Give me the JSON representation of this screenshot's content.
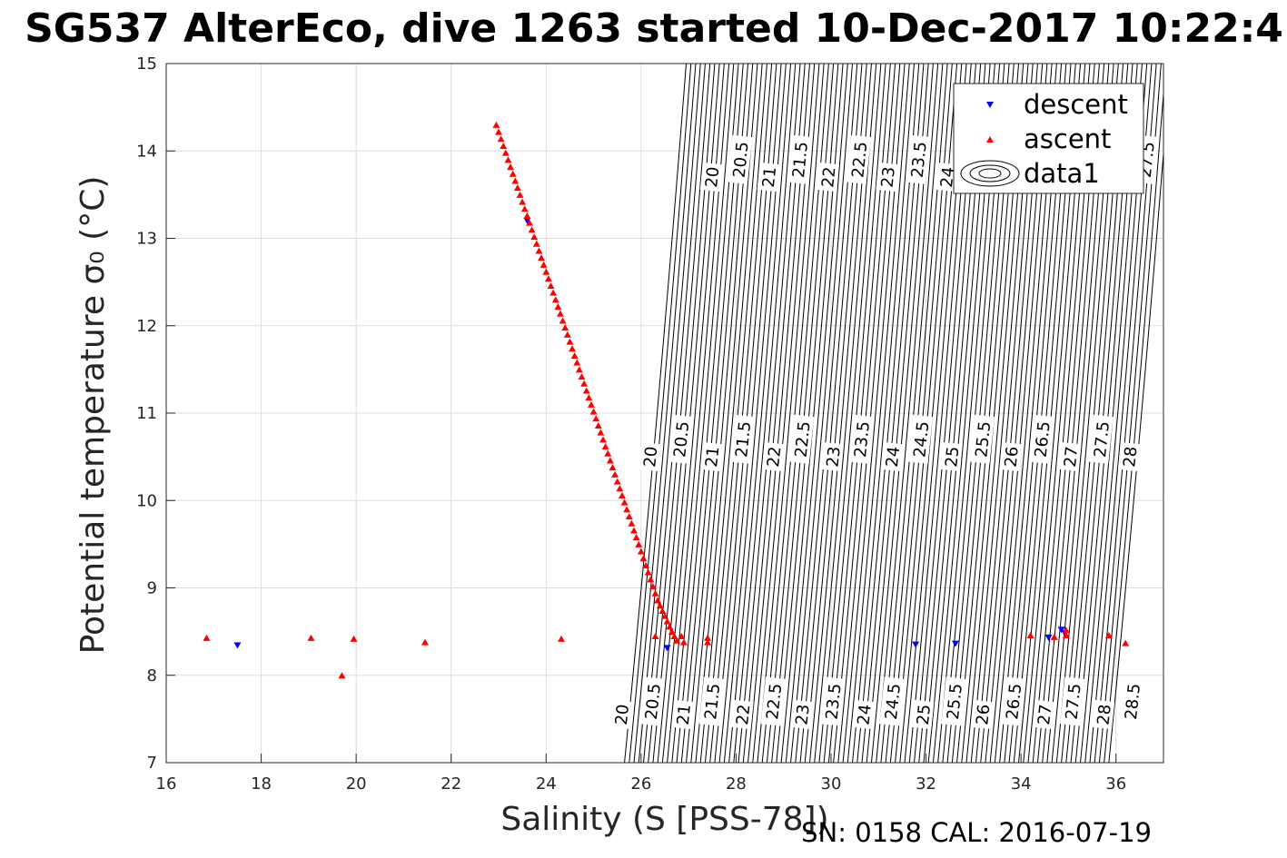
{
  "chart_data": {
    "type": "scatter",
    "title": "SG537 AlterEco, dive 1263 started 10-Dec-2017 10:22:4",
    "xlabel": "Salinity (S [PSS-78])",
    "ylabel": "Potential temperature σ₀ (°C)",
    "xlim": [
      16,
      37
    ],
    "ylim": [
      7,
      15
    ],
    "x_ticks": [
      "16",
      "18",
      "20",
      "22",
      "24",
      "26",
      "28",
      "30",
      "32",
      "34",
      "36"
    ],
    "y_ticks": [
      "7",
      "8",
      "9",
      "10",
      "11",
      "12",
      "13",
      "14",
      "15"
    ],
    "grid": true,
    "legend": {
      "position": "top-right",
      "entries": [
        "descent",
        "ascent",
        "data1"
      ]
    },
    "footer": "SN: 0158  CAL: 2016-07-19",
    "colors": {
      "descent": "#0000ff",
      "ascent": "#ff0000",
      "contour": "#000000",
      "grid": "#dddddd"
    },
    "series": [
      {
        "name": "descent",
        "marker": "triangle-down",
        "points": [
          [
            17.5,
            8.34
          ],
          [
            23.6,
            13.2
          ],
          [
            26.55,
            8.31
          ],
          [
            31.78,
            8.35
          ],
          [
            32.62,
            8.36
          ],
          [
            34.58,
            8.43
          ],
          [
            34.85,
            8.52
          ],
          [
            34.92,
            8.48
          ]
        ]
      },
      {
        "name": "ascent",
        "marker": "triangle-up",
        "points": [
          [
            16.85,
            8.43
          ],
          [
            19.05,
            8.43
          ],
          [
            19.7,
            8.0
          ],
          [
            19.95,
            8.42
          ],
          [
            21.45,
            8.38
          ],
          [
            24.32,
            8.42
          ],
          [
            26.3,
            8.45
          ],
          [
            27.4,
            8.43
          ],
          [
            27.4,
            8.38
          ],
          [
            26.85,
            8.45
          ],
          [
            26.9,
            8.38
          ],
          [
            34.2,
            8.46
          ],
          [
            34.7,
            8.44
          ],
          [
            34.95,
            8.46
          ],
          [
            34.95,
            8.52
          ],
          [
            35.85,
            8.46
          ],
          [
            36.2,
            8.37
          ],
          [
            22.95,
            14.3
          ],
          [
            23.0,
            14.22
          ],
          [
            23.05,
            14.14
          ],
          [
            23.1,
            14.06
          ],
          [
            23.15,
            13.98
          ],
          [
            23.2,
            13.9
          ],
          [
            23.25,
            13.82
          ],
          [
            23.3,
            13.74
          ],
          [
            23.35,
            13.66
          ],
          [
            23.4,
            13.58
          ],
          [
            23.45,
            13.5
          ],
          [
            23.5,
            13.42
          ],
          [
            23.55,
            13.34
          ],
          [
            23.6,
            13.26
          ],
          [
            23.65,
            13.18
          ],
          [
            23.7,
            13.1
          ],
          [
            23.75,
            13.02
          ],
          [
            23.8,
            12.94
          ],
          [
            23.85,
            12.86
          ],
          [
            23.9,
            12.78
          ],
          [
            23.95,
            12.7
          ],
          [
            24.0,
            12.62
          ],
          [
            24.05,
            12.54
          ],
          [
            24.1,
            12.46
          ],
          [
            24.15,
            12.38
          ],
          [
            24.2,
            12.3
          ],
          [
            24.25,
            12.22
          ],
          [
            24.3,
            12.14
          ],
          [
            24.35,
            12.06
          ],
          [
            24.4,
            11.98
          ],
          [
            24.45,
            11.9
          ],
          [
            24.5,
            11.82
          ],
          [
            24.55,
            11.74
          ],
          [
            24.6,
            11.66
          ],
          [
            24.65,
            11.58
          ],
          [
            24.7,
            11.5
          ],
          [
            24.75,
            11.42
          ],
          [
            24.8,
            11.34
          ],
          [
            24.85,
            11.26
          ],
          [
            24.9,
            11.18
          ],
          [
            24.95,
            11.1
          ],
          [
            25.0,
            11.02
          ],
          [
            25.05,
            10.94
          ],
          [
            25.1,
            10.86
          ],
          [
            25.15,
            10.78
          ],
          [
            25.2,
            10.7
          ],
          [
            25.25,
            10.62
          ],
          [
            25.3,
            10.54
          ],
          [
            25.35,
            10.46
          ],
          [
            25.4,
            10.38
          ],
          [
            25.45,
            10.3
          ],
          [
            25.5,
            10.22
          ],
          [
            25.55,
            10.14
          ],
          [
            25.6,
            10.06
          ],
          [
            25.65,
            9.98
          ],
          [
            25.7,
            9.9
          ],
          [
            25.75,
            9.82
          ],
          [
            25.8,
            9.74
          ],
          [
            25.85,
            9.66
          ],
          [
            25.9,
            9.58
          ],
          [
            25.95,
            9.5
          ],
          [
            26.0,
            9.42
          ],
          [
            26.05,
            9.34
          ],
          [
            26.1,
            9.26
          ],
          [
            26.15,
            9.18
          ],
          [
            26.2,
            9.1
          ],
          [
            26.25,
            9.02
          ],
          [
            26.3,
            8.94
          ],
          [
            26.35,
            8.86
          ],
          [
            26.4,
            8.8
          ],
          [
            26.45,
            8.74
          ],
          [
            26.5,
            8.68
          ],
          [
            26.55,
            8.62
          ],
          [
            26.6,
            8.56
          ],
          [
            26.65,
            8.5
          ],
          [
            26.7,
            8.45
          ],
          [
            26.75,
            8.4
          ]
        ]
      }
    ],
    "contours": {
      "series_name": "data1",
      "lines": [
        {
          "s": [
            26.75,
            26.85,
            26.95,
            27.05,
            27.15,
            27.25,
            27.35,
            27.45,
            27.55,
            27.65,
            27.75,
            27.85,
            27.95,
            28.05,
            28.15,
            28.25,
            28.35,
            28.45,
            28.55,
            28.65,
            28.75,
            28.85,
            28.95,
            29.05,
            29.15,
            29.25,
            29.35,
            29.45,
            29.55,
            29.65,
            29.75,
            29.85,
            29.95,
            30.05,
            30.15,
            30.25,
            30.35,
            30.45,
            30.55,
            30.65,
            30.75,
            30.85,
            30.95,
            31.05,
            31.15,
            31.25,
            31.35,
            31.45,
            31.55,
            31.65,
            31.75,
            31.85,
            31.95,
            32.05,
            32.15,
            32.25,
            32.35,
            32.45,
            32.55,
            32.65,
            32.75,
            32.85,
            32.95,
            33.05,
            33.15,
            33.25,
            33.35,
            33.45,
            33.55,
            33.65,
            33.75,
            33.85,
            33.95,
            34.05,
            34.15,
            34.25,
            34.35,
            34.45,
            34.55,
            34.65,
            34.75,
            34.85,
            34.95,
            35.05,
            35.15,
            35.25,
            35.35,
            35.45,
            35.55,
            35.65,
            35.75,
            35.85,
            35.95,
            36.05,
            36.15,
            36.25,
            36.35,
            36.45,
            36.55,
            36.65,
            36.75,
            36.85,
            36.95
          ]
        }
      ],
      "labels": [
        {
          "text": "20",
          "s": 27.5,
          "t": 13.7
        },
        {
          "text": "20.5",
          "s": 28.1,
          "t": 13.9
        },
        {
          "text": "21",
          "s": 28.7,
          "t": 13.7
        },
        {
          "text": "21.5",
          "s": 29.35,
          "t": 13.9
        },
        {
          "text": "22",
          "s": 29.95,
          "t": 13.7
        },
        {
          "text": "22.5",
          "s": 30.6,
          "t": 13.9
        },
        {
          "text": "23",
          "s": 31.2,
          "t": 13.7
        },
        {
          "text": "23.5",
          "s": 31.85,
          "t": 13.9
        },
        {
          "text": "24",
          "s": 32.45,
          "t": 13.7
        },
        {
          "text": "27.5",
          "s": 36.65,
          "t": 13.9
        },
        {
          "text": "20",
          "s": 26.2,
          "t": 10.5
        },
        {
          "text": "20.5",
          "s": 26.85,
          "t": 10.7
        },
        {
          "text": "21",
          "s": 27.5,
          "t": 10.5
        },
        {
          "text": "21.5",
          "s": 28.15,
          "t": 10.7
        },
        {
          "text": "22",
          "s": 28.8,
          "t": 10.5
        },
        {
          "text": "22.5",
          "s": 29.4,
          "t": 10.7
        },
        {
          "text": "23",
          "s": 30.05,
          "t": 10.5
        },
        {
          "text": "23.5",
          "s": 30.65,
          "t": 10.7
        },
        {
          "text": "24",
          "s": 31.3,
          "t": 10.5
        },
        {
          "text": "24.5",
          "s": 31.9,
          "t": 10.7
        },
        {
          "text": "25",
          "s": 32.55,
          "t": 10.5
        },
        {
          "text": "25.5",
          "s": 33.2,
          "t": 10.7
        },
        {
          "text": "26",
          "s": 33.8,
          "t": 10.5
        },
        {
          "text": "26.5",
          "s": 34.45,
          "t": 10.7
        },
        {
          "text": "27",
          "s": 35.05,
          "t": 10.5
        },
        {
          "text": "27.5",
          "s": 35.7,
          "t": 10.7
        },
        {
          "text": "28",
          "s": 36.3,
          "t": 10.5
        },
        {
          "text": "20",
          "s": 25.6,
          "t": 7.55
        },
        {
          "text": "20.5",
          "s": 26.25,
          "t": 7.7
        },
        {
          "text": "21",
          "s": 26.9,
          "t": 7.55
        },
        {
          "text": "21.5",
          "s": 27.5,
          "t": 7.7
        },
        {
          "text": "22",
          "s": 28.15,
          "t": 7.55
        },
        {
          "text": "22.5",
          "s": 28.8,
          "t": 7.7
        },
        {
          "text": "23",
          "s": 29.4,
          "t": 7.55
        },
        {
          "text": "23.5",
          "s": 30.05,
          "t": 7.7
        },
        {
          "text": "24",
          "s": 30.7,
          "t": 7.55
        },
        {
          "text": "24.5",
          "s": 31.3,
          "t": 7.7
        },
        {
          "text": "25",
          "s": 31.95,
          "t": 7.55
        },
        {
          "text": "25.5",
          "s": 32.6,
          "t": 7.7
        },
        {
          "text": "26",
          "s": 33.2,
          "t": 7.55
        },
        {
          "text": "26.5",
          "s": 33.85,
          "t": 7.7
        },
        {
          "text": "27",
          "s": 34.5,
          "t": 7.55
        },
        {
          "text": "27.5",
          "s": 35.1,
          "t": 7.7
        },
        {
          "text": "28",
          "s": 35.75,
          "t": 7.55
        },
        {
          "text": "28.5",
          "s": 36.35,
          "t": 7.7
        }
      ]
    }
  }
}
